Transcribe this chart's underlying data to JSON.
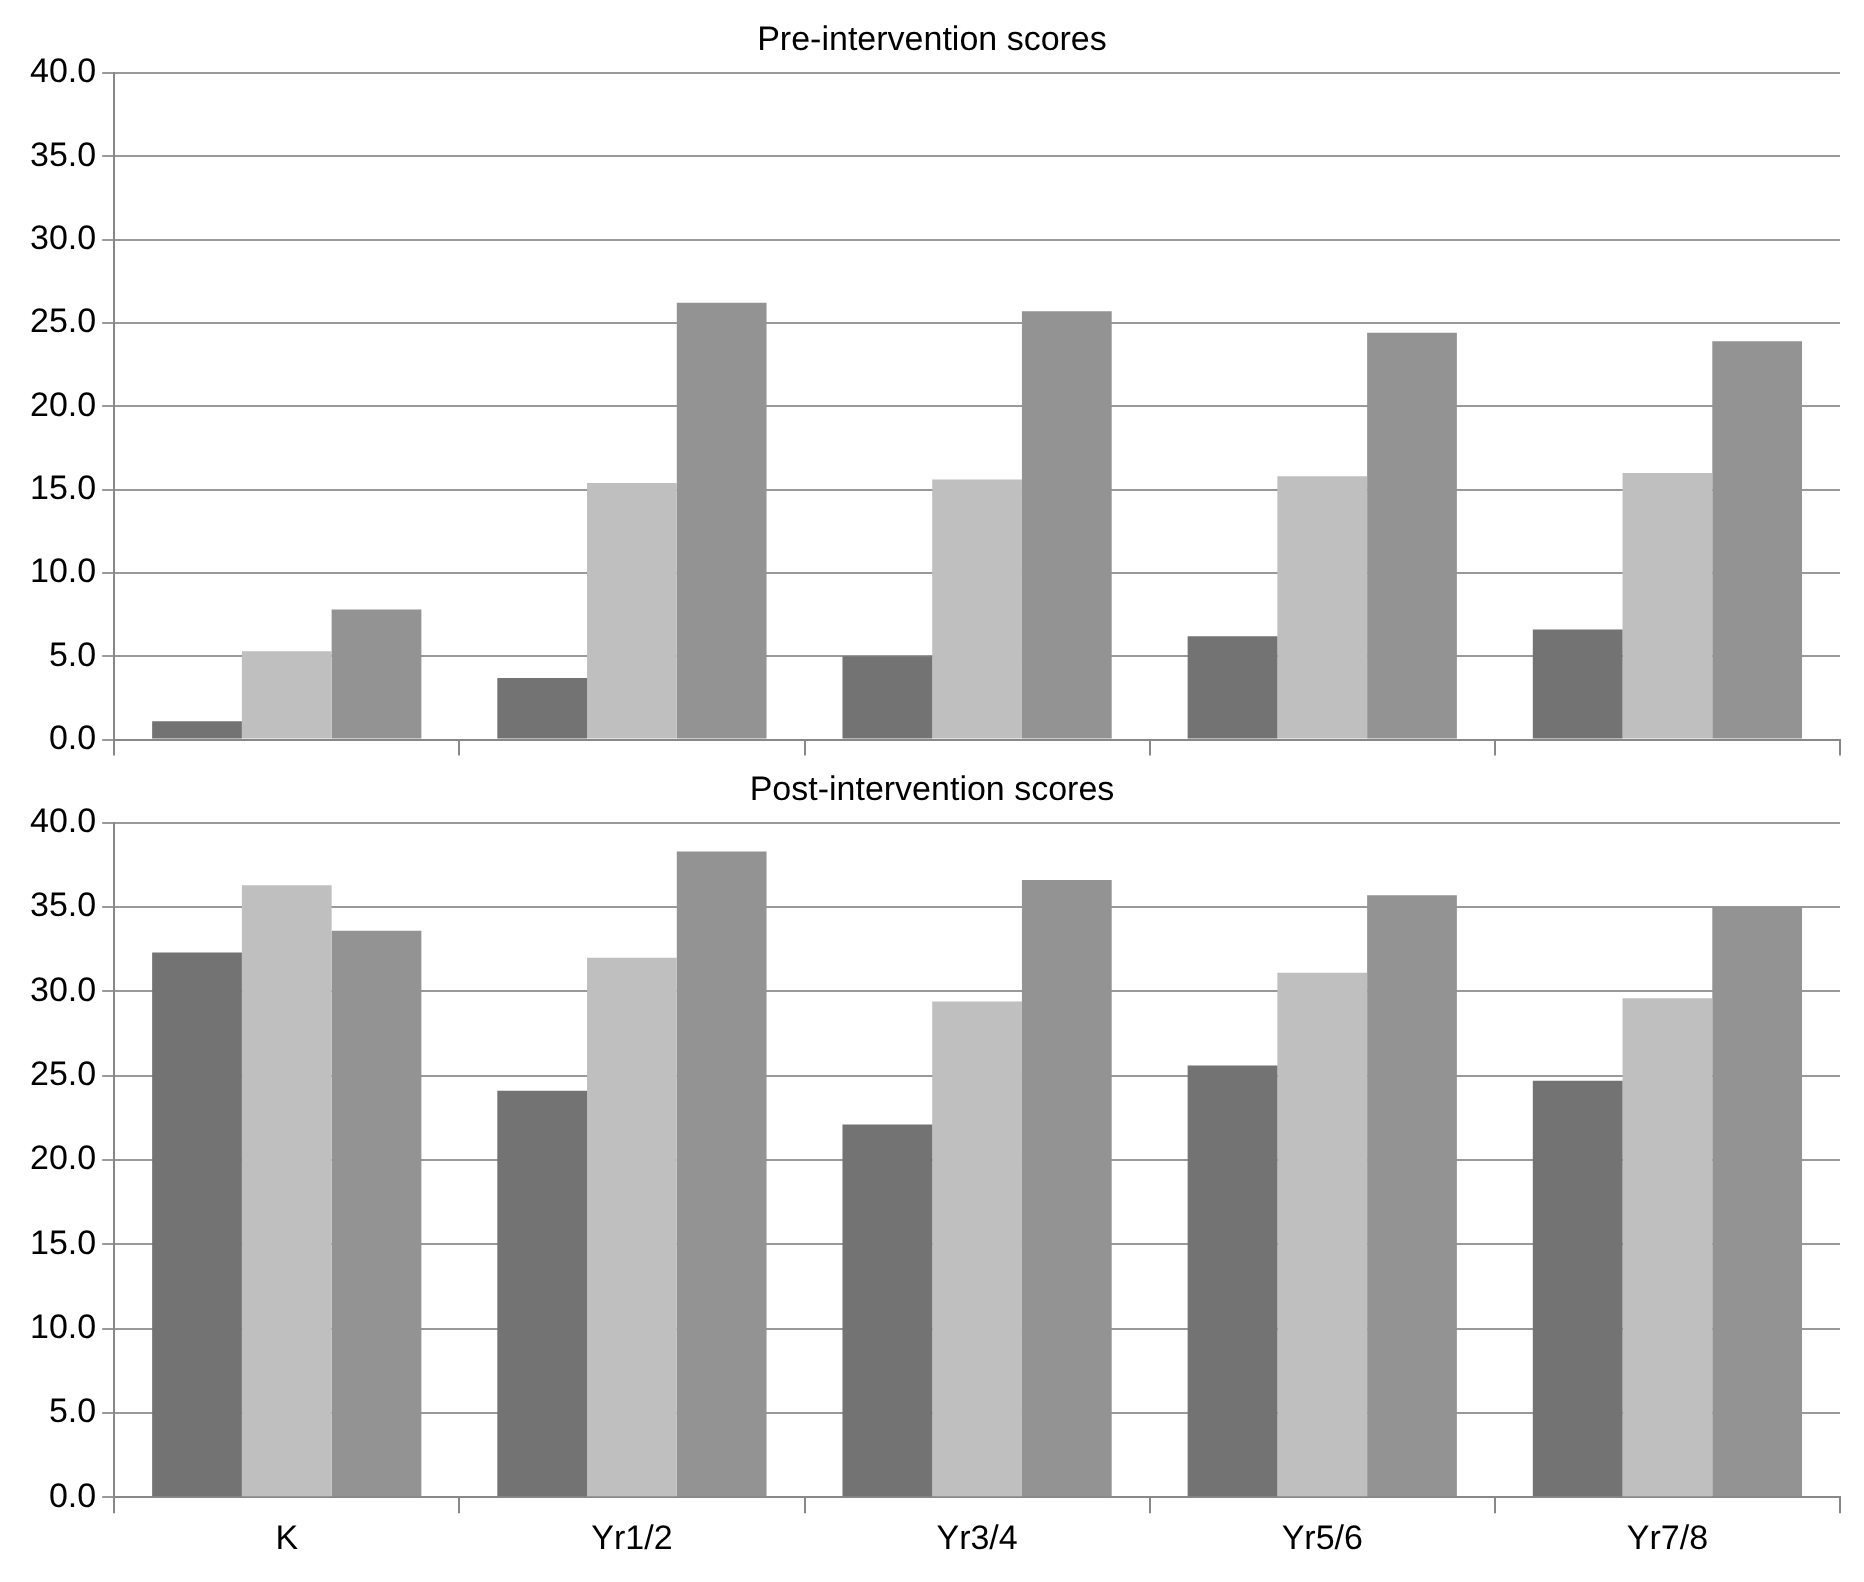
{
  "chart_data": [
    {
      "type": "bar",
      "title": "Pre-intervention scores",
      "categories": [
        null,
        null,
        null,
        null,
        null
      ],
      "series": [
        {
          "color": "#737373",
          "values": [
            1.1,
            3.7,
            5.0,
            6.2,
            6.6
          ]
        },
        {
          "color": "#bfbfbf",
          "values": [
            5.3,
            15.4,
            15.6,
            15.8,
            16.0
          ]
        },
        {
          "color": "#939393",
          "values": [
            7.8,
            26.2,
            25.7,
            24.4,
            23.9
          ]
        }
      ],
      "ylim": [
        0,
        40
      ],
      "yticks": [
        {
          "value": 0,
          "label": "0.0"
        },
        {
          "value": 5,
          "label": "5.0"
        },
        {
          "value": 10,
          "label": "10.0"
        },
        {
          "value": 15,
          "label": "15.0"
        },
        {
          "value": 20,
          "label": "20.0"
        },
        {
          "value": 25,
          "label": "25.0"
        },
        {
          "value": 30,
          "label": "30.0"
        },
        {
          "value": 35,
          "label": "35.0"
        },
        {
          "value": 40,
          "label": "40.0"
        }
      ],
      "grid": "y",
      "legend": false,
      "tick_labels": "y"
    },
    {
      "type": "bar",
      "title": "Post-intervention scores",
      "categories": [
        "K",
        "Yr1/2",
        "Yr3/4",
        "Yr5/6",
        "Yr7/8"
      ],
      "series": [
        {
          "color": "#737373",
          "values": [
            32.3,
            24.1,
            22.1,
            25.6,
            24.7
          ]
        },
        {
          "color": "#bfbfbf",
          "values": [
            36.3,
            32.0,
            29.4,
            31.1,
            29.6
          ]
        },
        {
          "color": "#939393",
          "values": [
            33.6,
            38.3,
            36.6,
            35.7,
            35.0
          ]
        }
      ],
      "ylim": [
        0,
        40
      ],
      "yticks": [
        {
          "value": 0,
          "label": "0.0"
        },
        {
          "value": 5,
          "label": "5.0"
        },
        {
          "value": 10,
          "label": "10.0"
        },
        {
          "value": 15,
          "label": "15.0"
        },
        {
          "value": 20,
          "label": "20.0"
        },
        {
          "value": 25,
          "label": "25.0"
        },
        {
          "value": 30,
          "label": "30.0"
        },
        {
          "value": 35,
          "label": "35.0"
        },
        {
          "value": 40,
          "label": "40.0"
        }
      ],
      "grid": "y",
      "legend": false
    }
  ]
}
